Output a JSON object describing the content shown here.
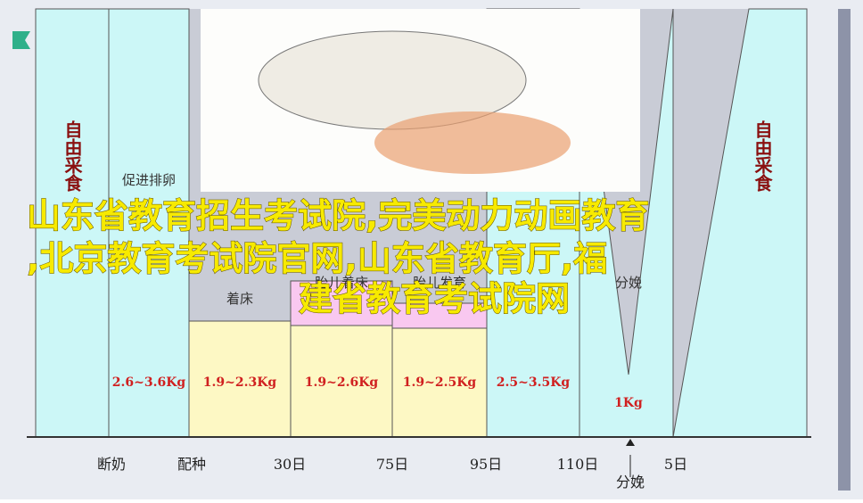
{
  "columns": [
    {
      "label": "自由采食",
      "amount": ""
    },
    {
      "label": "促进排卵",
      "amount": "2.6~3.6Kg"
    },
    {
      "label": "着床",
      "amount": "1.9~2.3Kg"
    },
    {
      "label": "胎儿着床",
      "amount": "1.9~2.6Kg"
    },
    {
      "label": "胎儿发育",
      "amount": "1.9~2.5Kg"
    },
    {
      "label": "",
      "amount": "2.5~3.5Kg"
    },
    {
      "label": "分娩",
      "amount": "1Kg"
    },
    {
      "label": "自由采食",
      "amount": ""
    }
  ],
  "axis_labels": [
    "断奶",
    "配种",
    "30日",
    "75日",
    "95日",
    "110日",
    "5日"
  ],
  "farrowing_marker": "分娩",
  "overlay": {
    "lines": [
      "山东省教育招生考试院,完美动力动画教育",
      ",北京教育考试院官网,山东省教育厅,福",
      "建省教育考试院网"
    ]
  }
}
